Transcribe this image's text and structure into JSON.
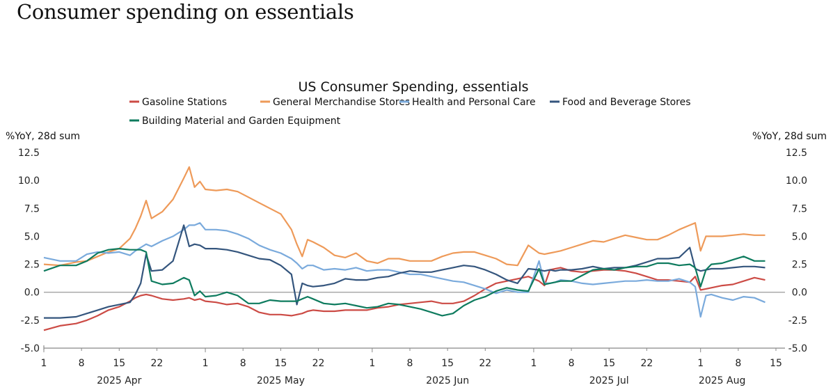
{
  "page": {
    "title": "Consumer spending on essentials"
  },
  "chart_data": {
    "type": "line",
    "title": "US Consumer Spending, essentials",
    "ylabel_left": "%YoY, 28d sum",
    "ylabel_right": "%YoY, 28d sum",
    "ylim": [
      -5.0,
      12.5
    ],
    "yticks": [
      "12.5",
      "10.0",
      "7.5",
      "5.0",
      "2.5",
      "0.0",
      "-2.5",
      "-5.0"
    ],
    "ytick_values": [
      12.5,
      10.0,
      7.5,
      5.0,
      2.5,
      0.0,
      -2.5,
      -5.0
    ],
    "xlim": [
      "2025-04-01",
      "2025-08-15"
    ],
    "xticks": [
      {
        "date": "2025-04-01",
        "label": "1"
      },
      {
        "date": "2025-04-08",
        "label": "8"
      },
      {
        "date": "2025-04-15",
        "label": "15"
      },
      {
        "date": "2025-04-22",
        "label": "22"
      },
      {
        "date": "2025-05-01",
        "label": "1"
      },
      {
        "date": "2025-05-08",
        "label": "8"
      },
      {
        "date": "2025-05-15",
        "label": "15"
      },
      {
        "date": "2025-05-22",
        "label": "22"
      },
      {
        "date": "2025-06-01",
        "label": "1"
      },
      {
        "date": "2025-06-08",
        "label": "8"
      },
      {
        "date": "2025-06-15",
        "label": "15"
      },
      {
        "date": "2025-06-22",
        "label": "22"
      },
      {
        "date": "2025-07-01",
        "label": "1"
      },
      {
        "date": "2025-07-08",
        "label": "8"
      },
      {
        "date": "2025-07-15",
        "label": "15"
      },
      {
        "date": "2025-07-22",
        "label": "22"
      },
      {
        "date": "2025-08-01",
        "label": "1"
      },
      {
        "date": "2025-08-08",
        "label": "8"
      },
      {
        "date": "2025-08-15",
        "label": "15"
      }
    ],
    "month_labels": [
      {
        "date": "2025-04-15",
        "label": "2025 Apr"
      },
      {
        "date": "2025-05-15",
        "label": "2025 May"
      },
      {
        "date": "2025-06-15",
        "label": "2025 Jun"
      },
      {
        "date": "2025-07-15",
        "label": "2025 Jul"
      },
      {
        "date": "2025-08-05",
        "label": "2025 Aug"
      }
    ],
    "zero_line": true,
    "grid": false,
    "legend_position": "top-center",
    "x_day_offsets": [
      0,
      3,
      6,
      8,
      10,
      12,
      14,
      16,
      17,
      18,
      19,
      20,
      22,
      24,
      26,
      27,
      28,
      29,
      30,
      32,
      34,
      36,
      38,
      40,
      42,
      44,
      46,
      47,
      48,
      49,
      50,
      52,
      54,
      56,
      58,
      60,
      62,
      64,
      66,
      68,
      70,
      72,
      74,
      76,
      78,
      80,
      82,
      84,
      86,
      88,
      90,
      92,
      93,
      94,
      95,
      96,
      98,
      100,
      102,
      104,
      106,
      108,
      110,
      112,
      114,
      116,
      118,
      120,
      121,
      122,
      123,
      124,
      126,
      128,
      130,
      132,
      134
    ],
    "series": [
      {
        "name": "Gasoline Stations",
        "color": "#cc4b45",
        "values": [
          -3.4,
          -3.0,
          -2.8,
          -2.5,
          -2.1,
          -1.6,
          -1.3,
          -0.8,
          -0.5,
          -0.3,
          -0.2,
          -0.3,
          -0.6,
          -0.7,
          -0.6,
          -0.5,
          -0.7,
          -0.6,
          -0.8,
          -0.9,
          -1.1,
          -1.0,
          -1.3,
          -1.8,
          -2.0,
          -2.0,
          -2.1,
          -2.0,
          -1.9,
          -1.7,
          -1.6,
          -1.7,
          -1.7,
          -1.6,
          -1.6,
          -1.6,
          -1.4,
          -1.3,
          -1.1,
          -1.0,
          -0.9,
          -0.8,
          -1.0,
          -1.0,
          -0.8,
          -0.3,
          0.3,
          0.8,
          1.0,
          1.2,
          1.4,
          1.0,
          0.6,
          2.0,
          2.1,
          2.2,
          1.9,
          1.8,
          1.9,
          2.0,
          2.0,
          1.9,
          1.7,
          1.4,
          1.1,
          1.1,
          1.0,
          0.9,
          1.4,
          0.2,
          0.3,
          0.4,
          0.6,
          0.7,
          1.0,
          1.3,
          1.1
        ]
      },
      {
        "name": "General Merchandise Stores",
        "color": "#ee9a59",
        "values": [
          2.5,
          2.4,
          2.7,
          2.8,
          3.2,
          3.6,
          3.9,
          4.8,
          5.7,
          6.8,
          8.2,
          6.6,
          7.2,
          8.3,
          10.2,
          11.2,
          9.4,
          9.9,
          9.2,
          9.1,
          9.2,
          9.0,
          8.5,
          8.0,
          7.5,
          7.0,
          5.6,
          4.3,
          3.2,
          4.7,
          4.5,
          4.0,
          3.3,
          3.1,
          3.5,
          2.8,
          2.6,
          3.0,
          3.0,
          2.8,
          2.8,
          2.8,
          3.2,
          3.5,
          3.6,
          3.6,
          3.3,
          3.0,
          2.5,
          2.4,
          4.2,
          3.5,
          3.4,
          3.5,
          3.6,
          3.7,
          4.0,
          4.3,
          4.6,
          4.5,
          4.8,
          5.1,
          4.9,
          4.7,
          4.7,
          5.1,
          5.6,
          6.0,
          6.2,
          3.7,
          5.0,
          5.0,
          5.0,
          5.1,
          5.2,
          5.1,
          5.1
        ]
      },
      {
        "name": "Health and Personal Care",
        "color": "#7aaadc",
        "values": [
          3.1,
          2.8,
          2.8,
          3.4,
          3.6,
          3.5,
          3.6,
          3.3,
          3.7,
          4.0,
          4.3,
          4.1,
          4.6,
          5.0,
          5.6,
          6.0,
          6.0,
          6.2,
          5.6,
          5.6,
          5.5,
          5.2,
          4.8,
          4.2,
          3.8,
          3.5,
          3.0,
          2.6,
          2.1,
          2.4,
          2.4,
          2.0,
          2.1,
          2.0,
          2.2,
          1.9,
          2.0,
          2.0,
          1.8,
          1.6,
          1.6,
          1.4,
          1.2,
          1.0,
          0.9,
          0.6,
          0.3,
          -0.1,
          0.2,
          0.0,
          0.0,
          2.8,
          0.8,
          0.8,
          0.9,
          1.1,
          1.0,
          0.8,
          0.7,
          0.8,
          0.9,
          1.0,
          1.0,
          1.1,
          1.0,
          1.0,
          1.2,
          0.9,
          0.5,
          -2.2,
          -0.3,
          -0.2,
          -0.5,
          -0.7,
          -0.4,
          -0.5,
          -0.9
        ]
      },
      {
        "name": "Food and Beverage Stores",
        "color": "#34557d",
        "values": [
          -2.3,
          -2.3,
          -2.2,
          -1.9,
          -1.6,
          -1.3,
          -1.1,
          -0.9,
          -0.2,
          0.8,
          3.4,
          1.9,
          2.0,
          2.8,
          6.0,
          4.1,
          4.3,
          4.2,
          3.9,
          3.9,
          3.8,
          3.6,
          3.3,
          3.0,
          2.9,
          2.4,
          1.6,
          -1.1,
          0.8,
          0.6,
          0.5,
          0.6,
          0.8,
          1.2,
          1.1,
          1.1,
          1.3,
          1.4,
          1.7,
          1.9,
          1.8,
          1.8,
          2.0,
          2.2,
          2.4,
          2.3,
          2.0,
          1.6,
          1.1,
          0.8,
          2.1,
          2.0,
          1.9,
          2.0,
          1.9,
          2.0,
          2.0,
          2.1,
          2.3,
          2.1,
          2.2,
          2.2,
          2.4,
          2.7,
          3.0,
          3.0,
          3.1,
          4.0,
          2.1,
          1.9,
          2.0,
          2.1,
          2.1,
          2.2,
          2.3,
          2.3,
          2.2
        ]
      },
      {
        "name": "Building Material and Garden Equipment",
        "color": "#0e7b5e",
        "values": [
          1.9,
          2.4,
          2.4,
          2.8,
          3.5,
          3.8,
          3.9,
          3.8,
          3.8,
          3.8,
          3.6,
          1.0,
          0.7,
          0.8,
          1.3,
          1.1,
          -0.3,
          0.1,
          -0.4,
          -0.3,
          0.0,
          -0.3,
          -1.0,
          -1.0,
          -0.7,
          -0.8,
          -0.8,
          -0.8,
          -0.6,
          -0.4,
          -0.6,
          -1.0,
          -1.1,
          -1.0,
          -1.2,
          -1.4,
          -1.3,
          -1.0,
          -1.1,
          -1.3,
          -1.5,
          -1.8,
          -2.1,
          -1.9,
          -1.2,
          -0.7,
          -0.4,
          0.1,
          0.4,
          0.2,
          0.1,
          2.1,
          0.7,
          0.8,
          0.9,
          1.0,
          1.0,
          1.5,
          2.0,
          2.1,
          2.0,
          2.2,
          2.3,
          2.3,
          2.6,
          2.6,
          2.4,
          2.5,
          2.2,
          0.5,
          2.0,
          2.5,
          2.6,
          2.9,
          3.2,
          2.8,
          2.8
        ]
      }
    ]
  }
}
